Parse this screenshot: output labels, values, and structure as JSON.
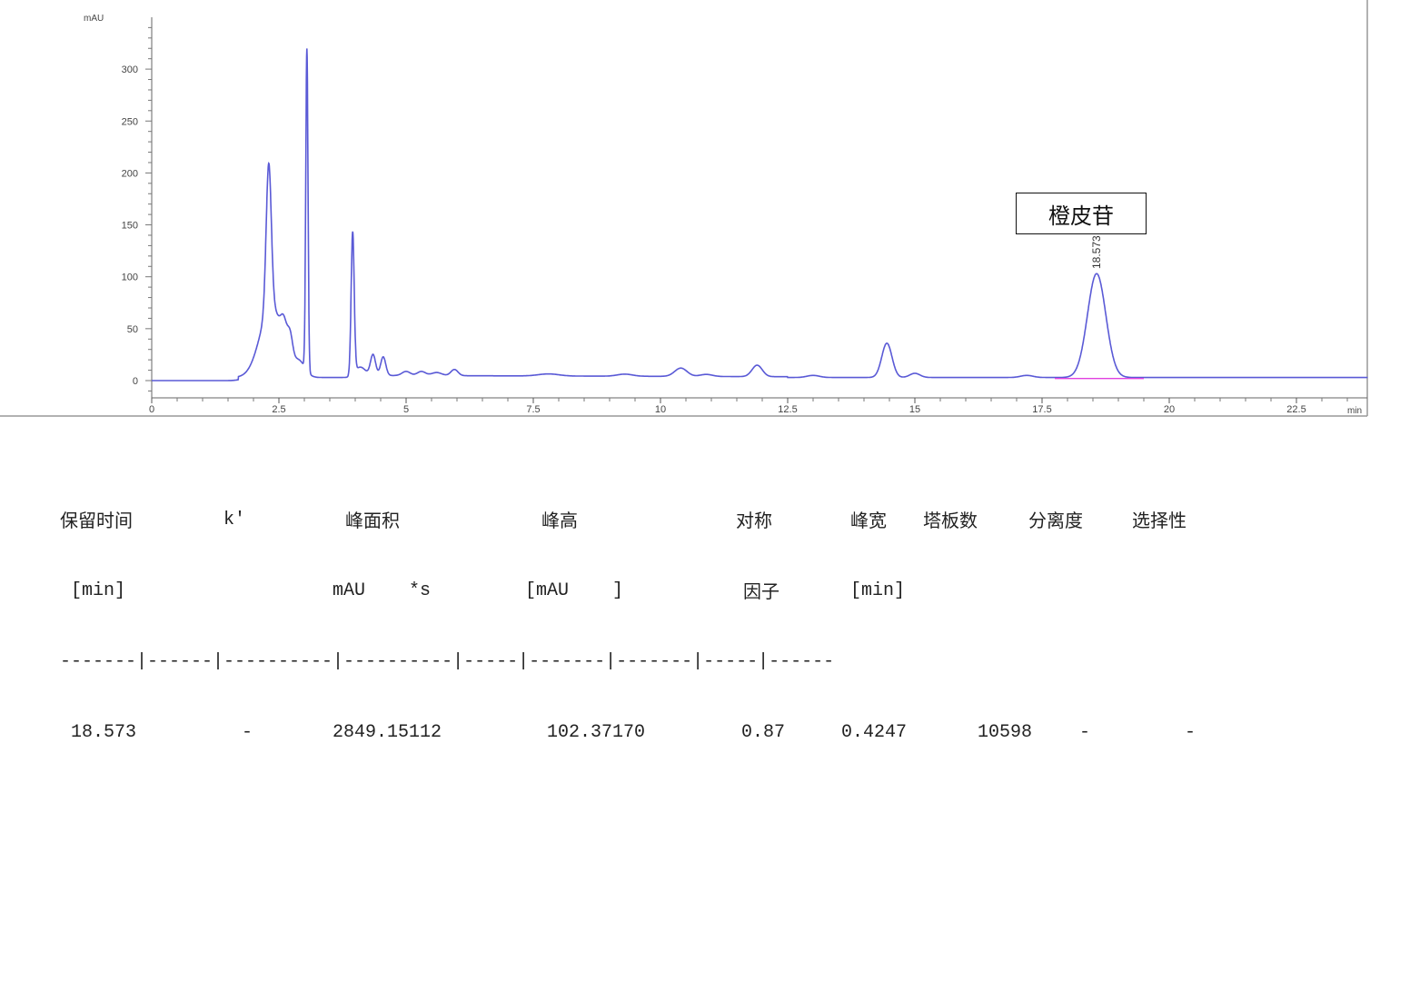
{
  "chart_data": {
    "type": "line",
    "ylabel": "mAU",
    "xlabel": "min",
    "xlim": [
      0,
      23.9
    ],
    "ylim": [
      -15,
      350
    ],
    "x_ticks": [
      "0",
      "2.5",
      "5",
      "7.5",
      "10",
      "12.5",
      "15",
      "17.5",
      "20",
      "22.5"
    ],
    "y_ticks": [
      "0",
      "50",
      "100",
      "150",
      "200",
      "250",
      "300"
    ],
    "grid": false,
    "line_color": "#5a5ad6",
    "baseline_color": "#e040e0",
    "peaks": [
      {
        "rt": 2.3,
        "height": 140,
        "width": 0.05
      },
      {
        "rt": 2.35,
        "height": 68,
        "width": 0.22
      },
      {
        "rt": 2.6,
        "height": 22,
        "width": 0.06
      },
      {
        "rt": 2.72,
        "height": 22,
        "width": 0.05
      },
      {
        "rt": 2.9,
        "height": 14,
        "width": 0.12
      },
      {
        "rt": 3.05,
        "height": 310,
        "width": 0.022
      },
      {
        "rt": 3.95,
        "height": 138,
        "width": 0.03
      },
      {
        "rt": 4.1,
        "height": 8,
        "width": 0.1
      },
      {
        "rt": 4.35,
        "height": 20,
        "width": 0.05
      },
      {
        "rt": 4.55,
        "height": 18,
        "width": 0.05
      },
      {
        "rt": 5.0,
        "height": 4,
        "width": 0.08
      },
      {
        "rt": 5.3,
        "height": 4,
        "width": 0.08
      },
      {
        "rt": 5.6,
        "height": 3,
        "width": 0.1
      },
      {
        "rt": 5.95,
        "height": 6,
        "width": 0.07
      },
      {
        "rt": 7.8,
        "height": 2,
        "width": 0.2
      },
      {
        "rt": 9.3,
        "height": 2,
        "width": 0.15
      },
      {
        "rt": 10.4,
        "height": 8,
        "width": 0.12
      },
      {
        "rt": 10.9,
        "height": 2,
        "width": 0.12
      },
      {
        "rt": 11.9,
        "height": 11,
        "width": 0.1
      },
      {
        "rt": 13.0,
        "height": 2,
        "width": 0.12
      },
      {
        "rt": 14.45,
        "height": 33,
        "width": 0.1
      },
      {
        "rt": 15.0,
        "height": 4,
        "width": 0.1
      },
      {
        "rt": 17.2,
        "height": 2,
        "width": 0.12
      },
      {
        "rt": 18.573,
        "height": 100,
        "width": 0.18
      }
    ],
    "peak_label": "18.573",
    "annotation": "橙皮苷"
  },
  "table": {
    "headers1": [
      "保留时间",
      "k'",
      "峰面积",
      "峰高",
      "对称",
      "峰宽",
      "塔板数",
      "分离度",
      "选择性"
    ],
    "headers2": [
      "[min]",
      "mAU    *s",
      "[mAU    ]",
      "因子",
      "[min]"
    ],
    "separator": "-------|------|----------|----------|-----|-------|-------|-----|------",
    "rows": [
      [
        "18.573",
        "-",
        "2849.15112",
        "102.37170",
        "0.87",
        "0.4247",
        "10598",
        "-",
        "-"
      ]
    ]
  }
}
